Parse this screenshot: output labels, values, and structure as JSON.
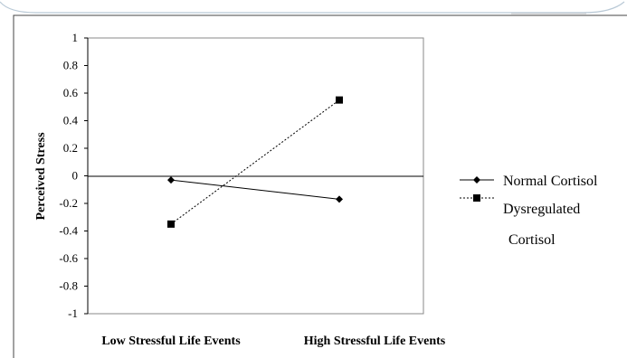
{
  "chart_data": {
    "type": "line",
    "categories": [
      "Low Stressful Life Events",
      "High Stressful Life Events"
    ],
    "ylabel": "Perceived Stress",
    "xlabel": "",
    "ylim": [
      -1,
      1
    ],
    "yticks": [
      "1",
      "0.8",
      "0.6",
      "0.4",
      "0.2",
      "0",
      "-0.2",
      "-0.4",
      "-0.6",
      "-0.8",
      "-1"
    ],
    "grid": false,
    "legend_position": "right",
    "series": [
      {
        "name": "Normal Cortisol",
        "values": [
          -0.03,
          -0.17
        ],
        "marker": "diamond",
        "line_style": "solid",
        "color": "#000000"
      },
      {
        "name": "Dysregulated Cortisol",
        "name_lines": [
          "Dysregulated",
          "Cortisol"
        ],
        "values": [
          -0.35,
          0.55
        ],
        "marker": "square",
        "line_style": "dotted",
        "color": "#000000"
      }
    ]
  },
  "colors": {
    "frame_border": "#b9c9d6",
    "plot_border": "#888888"
  }
}
